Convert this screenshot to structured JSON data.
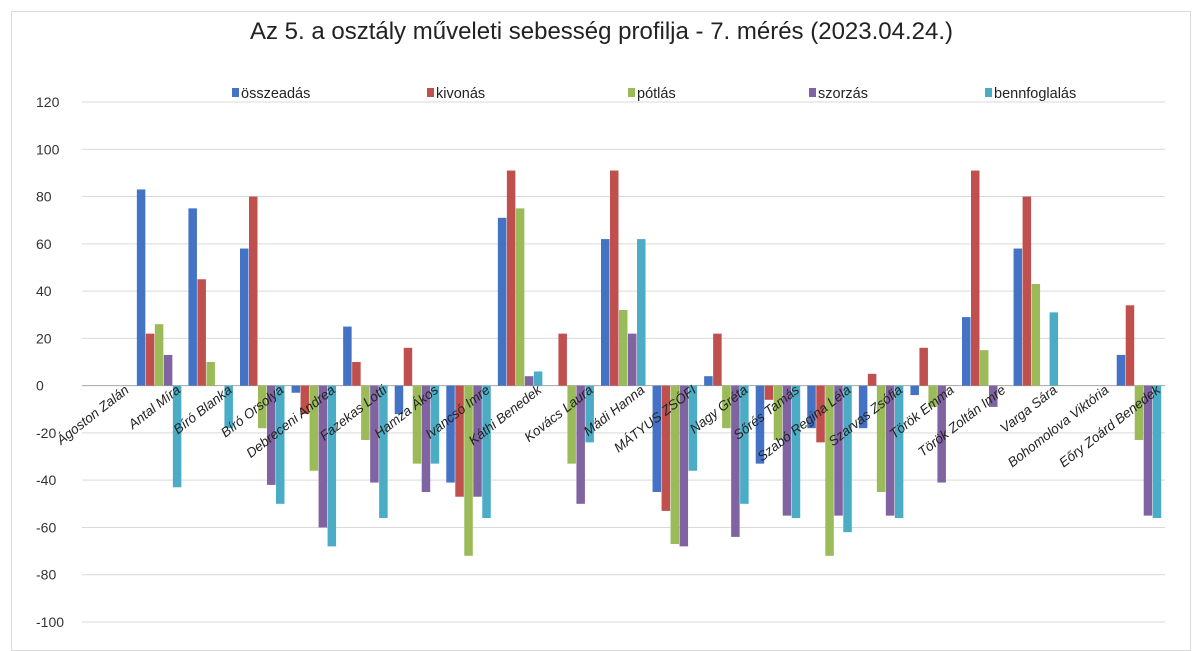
{
  "chart_data": {
    "type": "bar",
    "title": "Az 5. a osztály műveleti sebesség profilja - 7. mérés (2023.04.24.)",
    "xlabel": "",
    "ylabel": "",
    "ylim": [
      -100,
      120
    ],
    "yticks": [
      120,
      100,
      80,
      60,
      40,
      20,
      0,
      -20,
      -40,
      -60,
      -80,
      -100
    ],
    "grid": true,
    "legend_position": "top",
    "categories": [
      "Ágoston Zalán",
      "Antal Míra",
      "Bíró Blanka",
      "Bíró Orsolya",
      "Debreceni Andrea",
      "Fazekas Lotti",
      "Hamza Ákos",
      "Ivancsó Imre",
      "Káthi Benedek",
      "Kovács Laura",
      "Mádi Hanna",
      "MÁTYUS ZSÓFI",
      "Nagy Gréta",
      "Sőrés Tamás",
      "Szabó Regina Léla",
      "Szarvas Zsófia",
      "Török Emma",
      "Török Zoltán Imre",
      "Varga Sára",
      "Bohomolova Viktória",
      "Eőry Zoárd Benedek"
    ],
    "series": [
      {
        "name": "összeadás",
        "color": "#4472C4",
        "values": [
          0,
          83,
          75,
          58,
          -3,
          25,
          -12,
          -41,
          71,
          0,
          62,
          -45,
          4,
          -33,
          -18,
          -18,
          -4,
          29,
          58,
          0,
          13
        ]
      },
      {
        "name": "kivonás",
        "color": "#C0504D",
        "values": [
          0,
          22,
          45,
          80,
          -12,
          10,
          16,
          -47,
          91,
          22,
          91,
          -53,
          22,
          -6,
          -24,
          5,
          16,
          91,
          80,
          0,
          34
        ]
      },
      {
        "name": "pótlás",
        "color": "#9BBB59",
        "values": [
          0,
          26,
          10,
          -18,
          -36,
          -23,
          -33,
          -72,
          75,
          -33,
          32,
          -67,
          -18,
          -23,
          -72,
          -45,
          -9,
          15,
          43,
          0,
          -23
        ]
      },
      {
        "name": "szorzás",
        "color": "#8064A2",
        "values": [
          0,
          13,
          0,
          -42,
          -60,
          -41,
          -45,
          -47,
          4,
          -50,
          22,
          -68,
          -64,
          -55,
          -55,
          -55,
          -41,
          -9,
          0,
          0,
          -55
        ]
      },
      {
        "name": "bennfoglalás",
        "color": "#4BACC6",
        "values": [
          0,
          -43,
          -18,
          -50,
          -68,
          -56,
          -33,
          -56,
          6,
          -24,
          62,
          -36,
          -50,
          -56,
          -62,
          -56,
          0,
          0,
          31,
          0,
          -56
        ]
      }
    ]
  }
}
